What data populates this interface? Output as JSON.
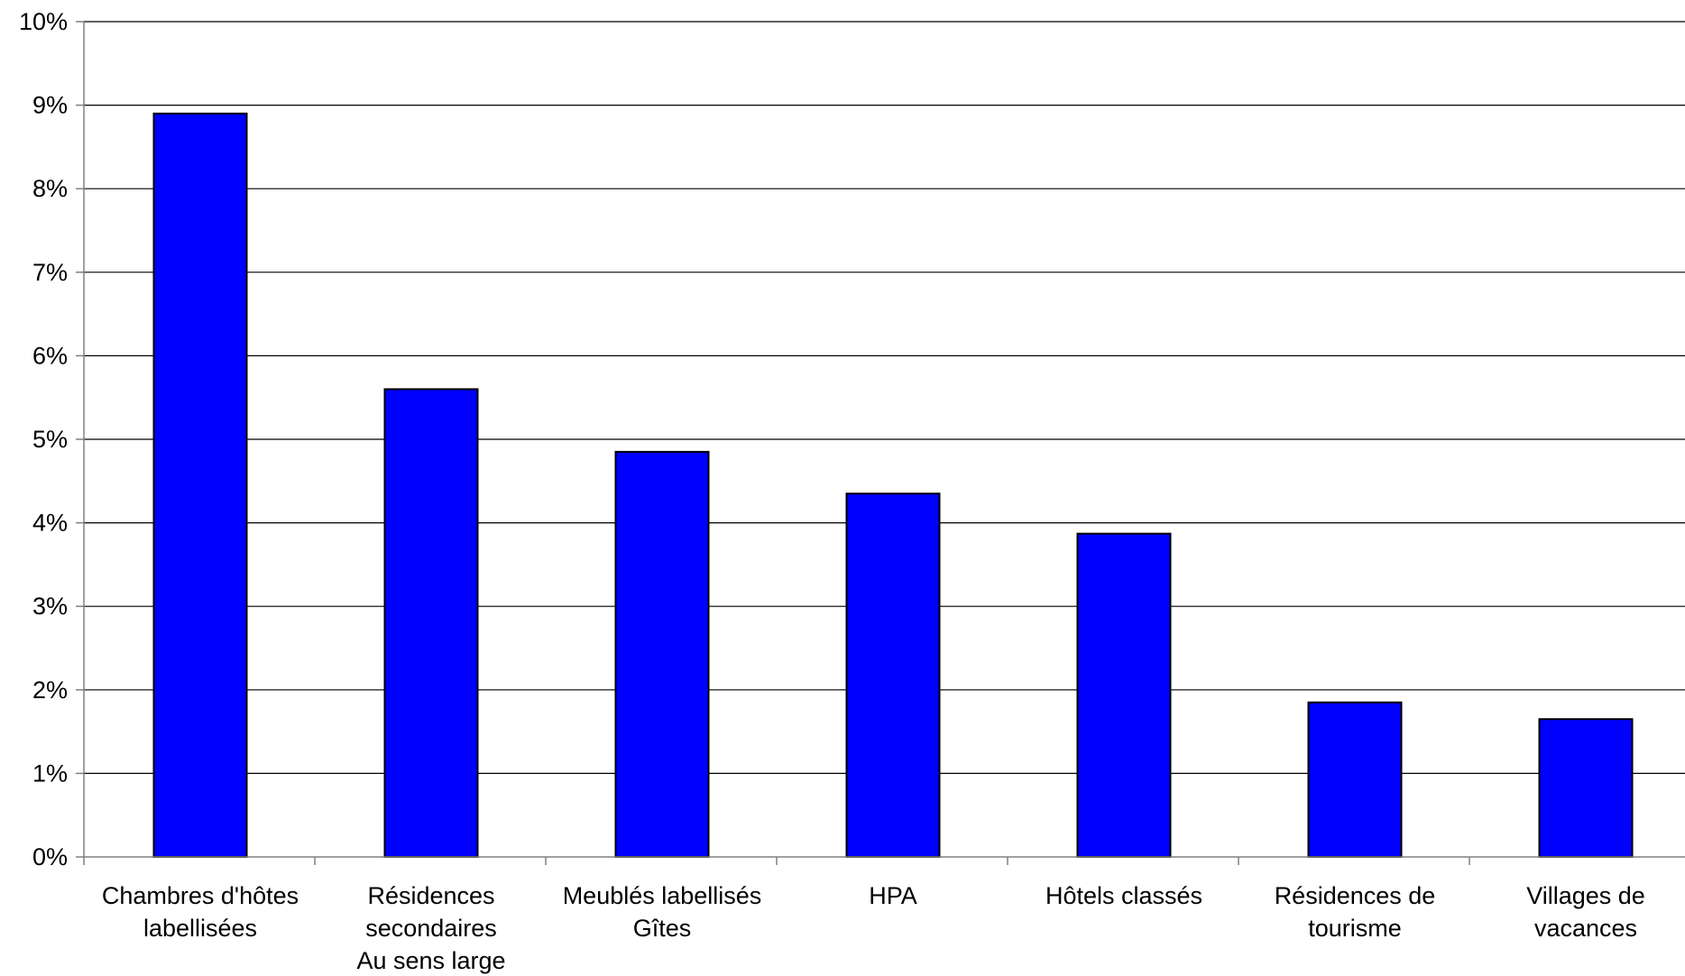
{
  "chart_data": {
    "type": "bar",
    "categories": [
      [
        "Chambres d'hôtes",
        "labellisées"
      ],
      [
        "Résidences",
        "secondaires",
        "Au sens large"
      ],
      [
        "Meublés labellisés",
        "Gîtes"
      ],
      [
        "HPA"
      ],
      [
        "Hôtels classés"
      ],
      [
        "Résidences de",
        "tourisme"
      ],
      [
        "Villages de",
        "vacances"
      ]
    ],
    "values": [
      8.9,
      5.6,
      4.85,
      4.35,
      3.87,
      1.85,
      1.65
    ],
    "value_unit": "%",
    "y_ticks": [
      "0%",
      "1%",
      "2%",
      "3%",
      "4%",
      "5%",
      "6%",
      "7%",
      "8%",
      "9%",
      "10%"
    ],
    "ylim": [
      0,
      10
    ],
    "grid": true,
    "legend": "none",
    "colors": {
      "bar": "#0000ff",
      "bar_border": "#000000",
      "grid": "#000000",
      "axis": "#808080"
    }
  }
}
